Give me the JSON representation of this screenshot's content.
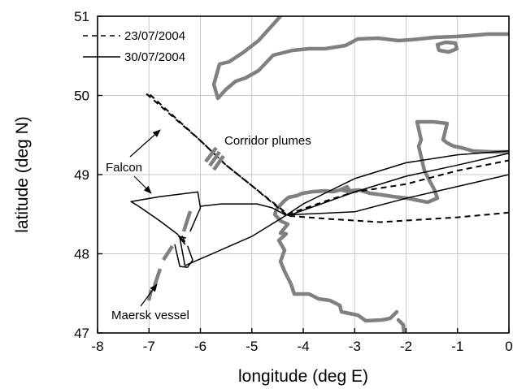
{
  "chart_data": {
    "type": "line",
    "xlabel": "longitude (deg E)",
    "ylabel": "latitude (deg N)",
    "xlim": [
      -8,
      0
    ],
    "ylim": [
      47,
      51
    ],
    "xticks": [
      "-8",
      "-7",
      "-6",
      "-5",
      "-4",
      "-3",
      "-2",
      "-1",
      "0"
    ],
    "yticks": [
      "47",
      "48",
      "49",
      "50",
      "51"
    ],
    "grid": true,
    "legend_position": "top-left",
    "colors": {
      "flight": "#000000",
      "coast": "#808080",
      "grid": "#c8c8c8"
    },
    "series": [
      {
        "name": "23/07/2004",
        "style": "dashed",
        "paths": [
          [
            [
              -7.05,
              50.02
            ],
            [
              -6.0,
              49.43
            ],
            [
              -5.5,
              49.12
            ],
            [
              -5.0,
              48.86
            ],
            [
              -4.3,
              48.5
            ],
            [
              -3.5,
              48.68
            ],
            [
              -3.0,
              48.78
            ],
            [
              -2.0,
              48.88
            ],
            [
              -1.0,
              49.05
            ],
            [
              0.0,
              49.18
            ]
          ],
          [
            [
              -6.98,
              50.01
            ],
            [
              -6.0,
              49.43
            ],
            [
              -5.5,
              49.12
            ],
            [
              -5.0,
              48.86
            ],
            [
              -4.3,
              48.48
            ],
            [
              -3.5,
              48.44
            ],
            [
              -2.5,
              48.4
            ],
            [
              -1.0,
              48.46
            ],
            [
              0.0,
              48.52
            ]
          ]
        ]
      },
      {
        "name": "30/07/2004",
        "style": "solid",
        "paths": [
          [
            [
              0.0,
              49.3
            ],
            [
              -1.0,
              49.25
            ],
            [
              -2.0,
              49.15
            ],
            [
              -3.0,
              48.95
            ],
            [
              -4.0,
              48.63
            ],
            [
              -4.3,
              48.5
            ],
            [
              -5.0,
              48.22
            ],
            [
              -6.3,
              47.85
            ],
            [
              -6.4,
              48.2
            ],
            [
              -6.35,
              48.22
            ],
            [
              -6.3,
              48.15
            ]
          ],
          [
            [
              -6.2,
              48.28
            ],
            [
              -6.0,
              48.58
            ],
            [
              -6.05,
              48.78
            ],
            [
              -6.8,
              48.72
            ],
            [
              -7.35,
              48.66
            ],
            [
              -7.2,
              48.6
            ],
            [
              -6.8,
              48.42
            ],
            [
              -6.45,
              48.25
            ],
            [
              -6.35,
              48.18
            ],
            [
              -6.3,
              48.12
            ],
            [
              -6.42,
              48.22
            ],
            [
              -6.28,
              48.2
            ]
          ],
          [
            [
              -6.0,
              48.6
            ],
            [
              -5.6,
              48.63
            ],
            [
              -4.9,
              48.63
            ],
            [
              -4.6,
              48.58
            ],
            [
              -4.35,
              48.49
            ],
            [
              -3.0,
              48.53
            ],
            [
              -2.0,
              48.7
            ],
            [
              -1.0,
              48.85
            ],
            [
              0.0,
              49.0
            ]
          ],
          [
            [
              -4.3,
              48.48
            ],
            [
              -3.0,
              48.78
            ],
            [
              -2.0,
              48.98
            ],
            [
              -1.0,
              49.12
            ],
            [
              0.0,
              49.27
            ]
          ],
          [
            [
              -6.5,
              48.12
            ],
            [
              -6.4,
              47.84
            ],
            [
              -6.25,
              47.83
            ],
            [
              -6.15,
              47.92
            ],
            [
              -6.25,
              48.1
            ]
          ]
        ]
      }
    ],
    "annotations": [
      {
        "text": "Corridor plumes"
      },
      {
        "text": "Falcon"
      },
      {
        "text": "Maersk vessel"
      }
    ]
  }
}
